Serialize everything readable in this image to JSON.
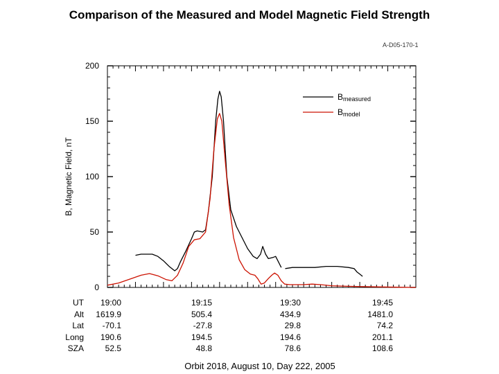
{
  "page": {
    "title": "Comparison of the Measured and Model Magnetic Field Strength",
    "figure_id": "A-D05-170-1"
  },
  "chart_data": {
    "type": "line",
    "ylabel": "B, Magnetic Field, nT",
    "xlabel": "Orbit 2018, August 10, Day 222, 2005",
    "ylim": [
      0,
      200
    ],
    "yticks": [
      0,
      50,
      100,
      150,
      200
    ],
    "xlim_minutes": [
      0,
      55
    ],
    "legend_position": "top-right",
    "colors": {
      "measured": "#000000",
      "model": "#cc1100"
    },
    "series": [
      {
        "key": "measured",
        "name": "B",
        "name_subscript": "measured",
        "segments": [
          [
            [
              5,
              29
            ],
            [
              6,
              30
            ],
            [
              7,
              30
            ],
            [
              8,
              30
            ],
            [
              9,
              28
            ],
            [
              10,
              24
            ],
            [
              11,
              19
            ],
            [
              12,
              15
            ],
            [
              12.5,
              17
            ],
            [
              13,
              23
            ],
            [
              14,
              33
            ],
            [
              15,
              44
            ],
            [
              15.5,
              50
            ],
            [
              16,
              51
            ],
            [
              17,
              50
            ],
            [
              17.5,
              52
            ],
            [
              18,
              68
            ],
            [
              18.7,
              100
            ],
            [
              19.3,
              150
            ],
            [
              19.7,
              170
            ],
            [
              20,
              177
            ],
            [
              20.3,
              172
            ],
            [
              20.7,
              150
            ],
            [
              21.3,
              100
            ],
            [
              22,
              70
            ],
            [
              23,
              55
            ],
            [
              24,
              45
            ],
            [
              25,
              35
            ],
            [
              26,
              28
            ],
            [
              26.7,
              26
            ],
            [
              27.3,
              30
            ],
            [
              27.7,
              37
            ],
            [
              28.2,
              30
            ],
            [
              28.7,
              26
            ],
            [
              29.5,
              27
            ],
            [
              30,
              28
            ],
            [
              30.5,
              23
            ],
            [
              31,
              18
            ]
          ],
          [
            [
              31.7,
              17
            ],
            [
              33,
              18
            ],
            [
              35,
              18
            ],
            [
              37,
              18
            ],
            [
              39,
              19
            ],
            [
              41,
              19
            ],
            [
              43,
              18
            ],
            [
              44,
              17
            ],
            [
              44.5,
              14
            ],
            [
              45,
              12
            ],
            [
              45.5,
              10
            ]
          ]
        ]
      },
      {
        "key": "model",
        "name": "B",
        "name_subscript": "model",
        "segments": [
          [
            [
              0,
              2
            ],
            [
              2,
              4
            ],
            [
              4,
              7.5
            ],
            [
              6,
              11
            ],
            [
              7.5,
              12.5
            ],
            [
              9,
              10.5
            ],
            [
              10.5,
              7
            ],
            [
              11.5,
              6
            ],
            [
              12.5,
              11
            ],
            [
              13.5,
              22
            ],
            [
              14.5,
              37
            ],
            [
              15.5,
              43
            ],
            [
              16.5,
              44
            ],
            [
              17.5,
              50
            ],
            [
              18.3,
              80
            ],
            [
              19,
              125
            ],
            [
              19.6,
              152
            ],
            [
              20,
              157
            ],
            [
              20.4,
              150
            ],
            [
              21,
              115
            ],
            [
              21.7,
              75
            ],
            [
              22.5,
              45
            ],
            [
              23.5,
              25
            ],
            [
              24.5,
              16
            ],
            [
              25.5,
              12
            ],
            [
              26.3,
              11
            ],
            [
              26.8,
              8
            ],
            [
              27.4,
              3
            ],
            [
              28,
              4
            ],
            [
              28.7,
              8
            ],
            [
              29.3,
              11
            ],
            [
              29.8,
              13
            ],
            [
              30.4,
              11
            ],
            [
              31,
              6
            ],
            [
              31.6,
              3
            ],
            [
              32.5,
              2.5
            ],
            [
              35,
              2.5
            ],
            [
              36.5,
              3
            ],
            [
              38,
              2.5
            ],
            [
              40,
              1.5
            ],
            [
              43,
              1
            ],
            [
              48,
              0.5
            ],
            [
              52,
              0.2
            ],
            [
              55,
              0
            ]
          ]
        ]
      }
    ],
    "footer_table": {
      "row_labels": [
        "UT",
        "Alt",
        "Lat",
        "Long",
        "SZA"
      ],
      "columns": [
        [
          "19:00",
          "1619.9",
          "-70.1",
          "190.6",
          "52.5"
        ],
        [
          "19:15",
          "505.4",
          "-27.8",
          "194.5",
          "48.8"
        ],
        [
          "19:30",
          "434.9",
          "29.8",
          "194.6",
          "78.6"
        ],
        [
          "19:45",
          "1481.0",
          "74.2",
          "201.1",
          "108.6"
        ]
      ]
    }
  }
}
